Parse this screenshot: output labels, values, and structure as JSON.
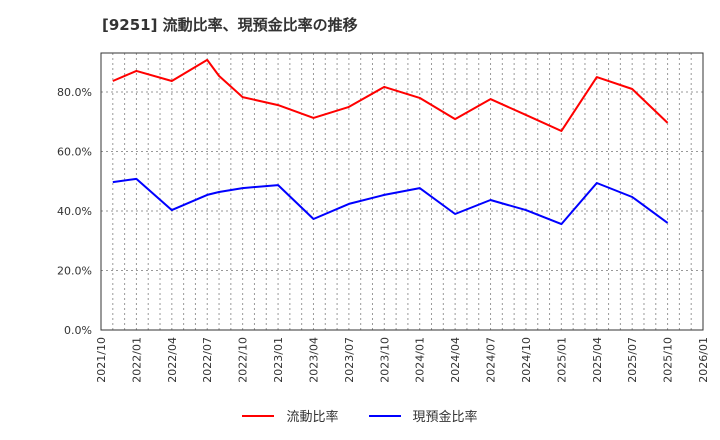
{
  "title": "[9251]  流動比率、現預金比率の推移",
  "chart_data": {
    "type": "line",
    "title": "[9251]  流動比率、現預金比率の推移",
    "xlabel": "",
    "ylabel": "",
    "ylim": [
      0,
      93
    ],
    "y_ticks": [
      "0.0%",
      "20.0%",
      "40.0%",
      "60.0%",
      "80.0%"
    ],
    "x_ticks": [
      "2021/10",
      "2022/01",
      "2022/04",
      "2022/07",
      "2022/10",
      "2023/01",
      "2023/04",
      "2023/07",
      "2023/10",
      "2024/01",
      "2024/04",
      "2024/07",
      "2024/10",
      "2025/01",
      "2025/04",
      "2025/07",
      "2025/10",
      "2026/01"
    ],
    "grid": true,
    "legend_position": "bottom",
    "x": [
      "2021/11",
      "2022/01",
      "2022/04",
      "2022/07",
      "2022/08",
      "2022/10",
      "2023/01",
      "2023/04",
      "2023/07",
      "2023/10",
      "2024/01",
      "2024/04",
      "2024/07",
      "2024/10",
      "2025/01",
      "2025/04",
      "2025/07",
      "2025/10"
    ],
    "series": [
      {
        "name": "流動比率",
        "color": "#ff0000",
        "values": [
          83.7,
          87.1,
          83.7,
          90.8,
          85.4,
          78.3,
          75.6,
          71.3,
          75.0,
          81.7,
          78.0,
          70.9,
          77.6,
          72.3,
          66.9,
          85.0,
          81.0,
          69.6
        ]
      },
      {
        "name": "現預金比率",
        "color": "#0000ff",
        "values": [
          49.7,
          50.8,
          40.3,
          45.4,
          46.4,
          47.7,
          48.7,
          37.3,
          42.4,
          45.4,
          47.7,
          39.0,
          43.7,
          40.3,
          35.6,
          49.4,
          44.7,
          36.0
        ]
      }
    ]
  },
  "legend": [
    {
      "label": "流動比率",
      "color": "#ff0000"
    },
    {
      "label": "現預金比率",
      "color": "#0000ff"
    }
  ]
}
